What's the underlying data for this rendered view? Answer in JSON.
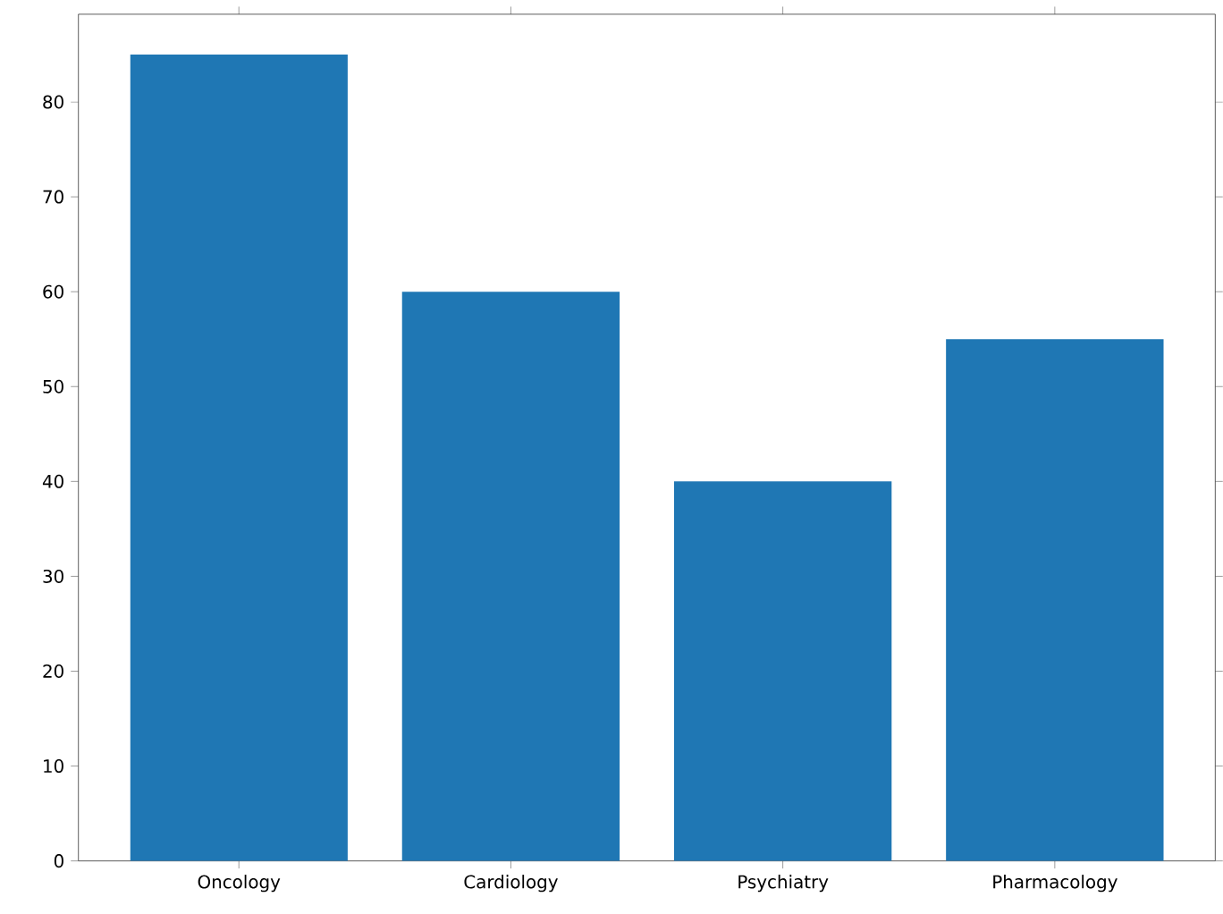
{
  "chart_data": {
    "type": "bar",
    "categories": [
      "Oncology",
      "Cardiology",
      "Psychiatry",
      "Pharmacology"
    ],
    "values": [
      85,
      60,
      40,
      55
    ],
    "color": "#1f77b4",
    "ylim": [
      0,
      89.25
    ],
    "yticks": [
      0,
      10,
      20,
      30,
      40,
      50,
      60,
      70,
      80
    ]
  }
}
